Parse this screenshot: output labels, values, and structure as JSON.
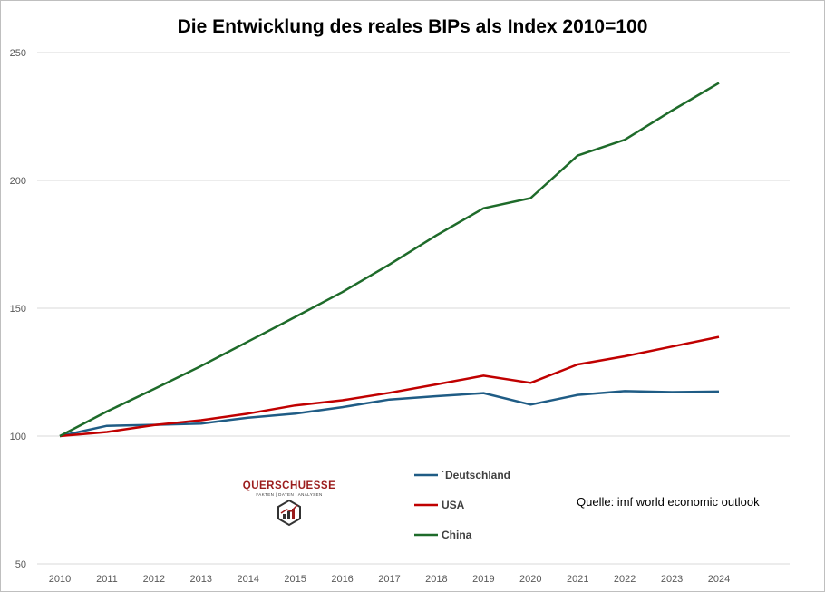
{
  "chart_data": {
    "type": "line",
    "title": "Die Entwicklung des reales BIPs als Index 2010=100",
    "xlabel": "",
    "ylabel": "",
    "ylim": [
      50,
      250
    ],
    "yticks": [
      50,
      100,
      150,
      200,
      250
    ],
    "grid": true,
    "legend_position": "bottom-center",
    "x": [
      "2010",
      "2011",
      "2012",
      "2013",
      "2014",
      "2015",
      "2016",
      "2017",
      "2018",
      "2019",
      "2020",
      "2021",
      "2022",
      "2023",
      "2024"
    ],
    "series": [
      {
        "name": "´Deutschland",
        "color": "#1f5c85",
        "values": [
          100,
          104.0,
          104.4,
          104.9,
          107.2,
          108.8,
          111.3,
          114.3,
          115.6,
          116.8,
          112.3,
          116.1,
          117.6,
          117.2,
          117.4
        ]
      },
      {
        "name": "USA",
        "color": "#c00000",
        "values": [
          100,
          101.6,
          104.3,
          106.2,
          108.8,
          112.0,
          114.0,
          116.9,
          120.2,
          123.6,
          120.8,
          128.0,
          131.2,
          135.0,
          138.8
        ]
      },
      {
        "name": "China",
        "color": "#1e6b2a",
        "values": [
          100,
          109.6,
          118.4,
          127.4,
          137.0,
          146.6,
          156.3,
          167.1,
          178.5,
          189.1,
          193.1,
          209.7,
          215.9,
          227.3,
          238.1
        ]
      }
    ]
  },
  "source_note": "Quelle: imf world economic outlook",
  "logo": {
    "name": "QUERSCHUESSE",
    "tagline": "FAKTEN | DATEN | ANALYSEN",
    "accent": "#9b1c1c"
  }
}
